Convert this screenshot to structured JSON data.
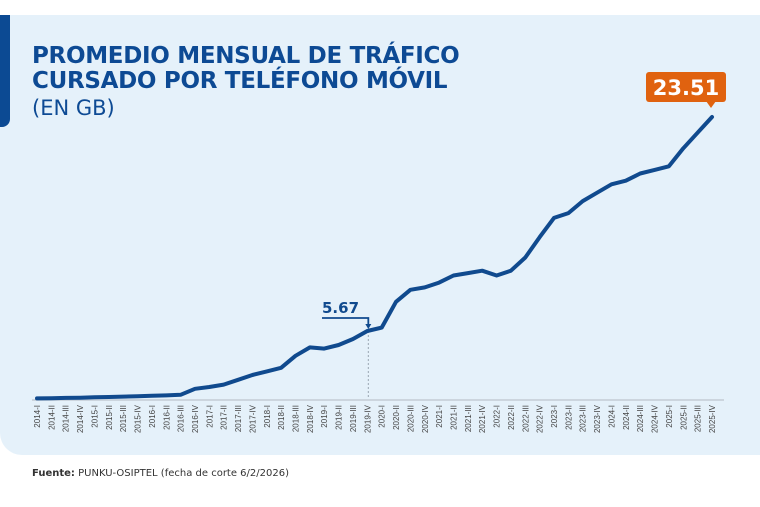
{
  "chart_data": {
    "type": "line",
    "title": "PROMEDIO MENSUAL DE TRÁFICO CURSADO POR TELÉFONO MÓVIL",
    "subtitle": "(EN GB)",
    "xlabel": "",
    "ylabel": "GB",
    "ylim": [
      0,
      24
    ],
    "grid": false,
    "categories": [
      "2014-I",
      "2014-II",
      "2014-III",
      "2014-IV",
      "2015-I",
      "2015-II",
      "2015-III",
      "2015-IV",
      "2016-I",
      "2016-II",
      "2016-III",
      "2016-IV",
      "2017-I",
      "2017-II",
      "2017-III",
      "2017-IV",
      "2018-I",
      "2018-II",
      "2018-III",
      "2018-IV",
      "2019-I",
      "2019-II",
      "2019-III",
      "2019-IV",
      "2020-I",
      "2020-II",
      "2020-III",
      "2020-IV",
      "2021-I",
      "2021-II",
      "2021-III",
      "2021-IV",
      "2022-I",
      "2022-II",
      "2022-III",
      "2022-IV",
      "2023-I",
      "2023-II",
      "2023-III",
      "2023-IV",
      "2024-I",
      "2024-II",
      "2024-III",
      "2024-IV",
      "2025-I",
      "2025-II",
      "2025-III",
      "2025-IV"
    ],
    "series": [
      {
        "name": "Promedio mensual (GB)",
        "values": [
          0.05,
          0.07,
          0.09,
          0.11,
          0.14,
          0.17,
          0.2,
          0.23,
          0.27,
          0.3,
          0.35,
          0.85,
          1.0,
          1.2,
          1.6,
          2.0,
          2.3,
          2.6,
          3.6,
          4.3,
          4.2,
          4.5,
          5.0,
          5.67,
          5.95,
          8.1,
          9.1,
          9.3,
          9.7,
          10.3,
          10.5,
          10.7,
          10.3,
          10.7,
          11.8,
          13.5,
          15.1,
          15.5,
          16.5,
          17.2,
          17.9,
          18.2,
          18.8,
          19.1,
          19.4,
          20.9,
          22.2,
          23.51
        ]
      }
    ],
    "annotations": [
      {
        "category": "2019-IV",
        "label": "5.67"
      },
      {
        "category": "2025-IV",
        "label": "23.51"
      }
    ]
  },
  "colors": {
    "line": "#104a8e",
    "title": "#0d4a94",
    "highlight": "#e0620f",
    "panel": "#e5f1fa"
  },
  "source": {
    "label": "Fuente:",
    "text": "PUNKU-OSIPTEL (fecha de corte 6/2/2026)"
  }
}
